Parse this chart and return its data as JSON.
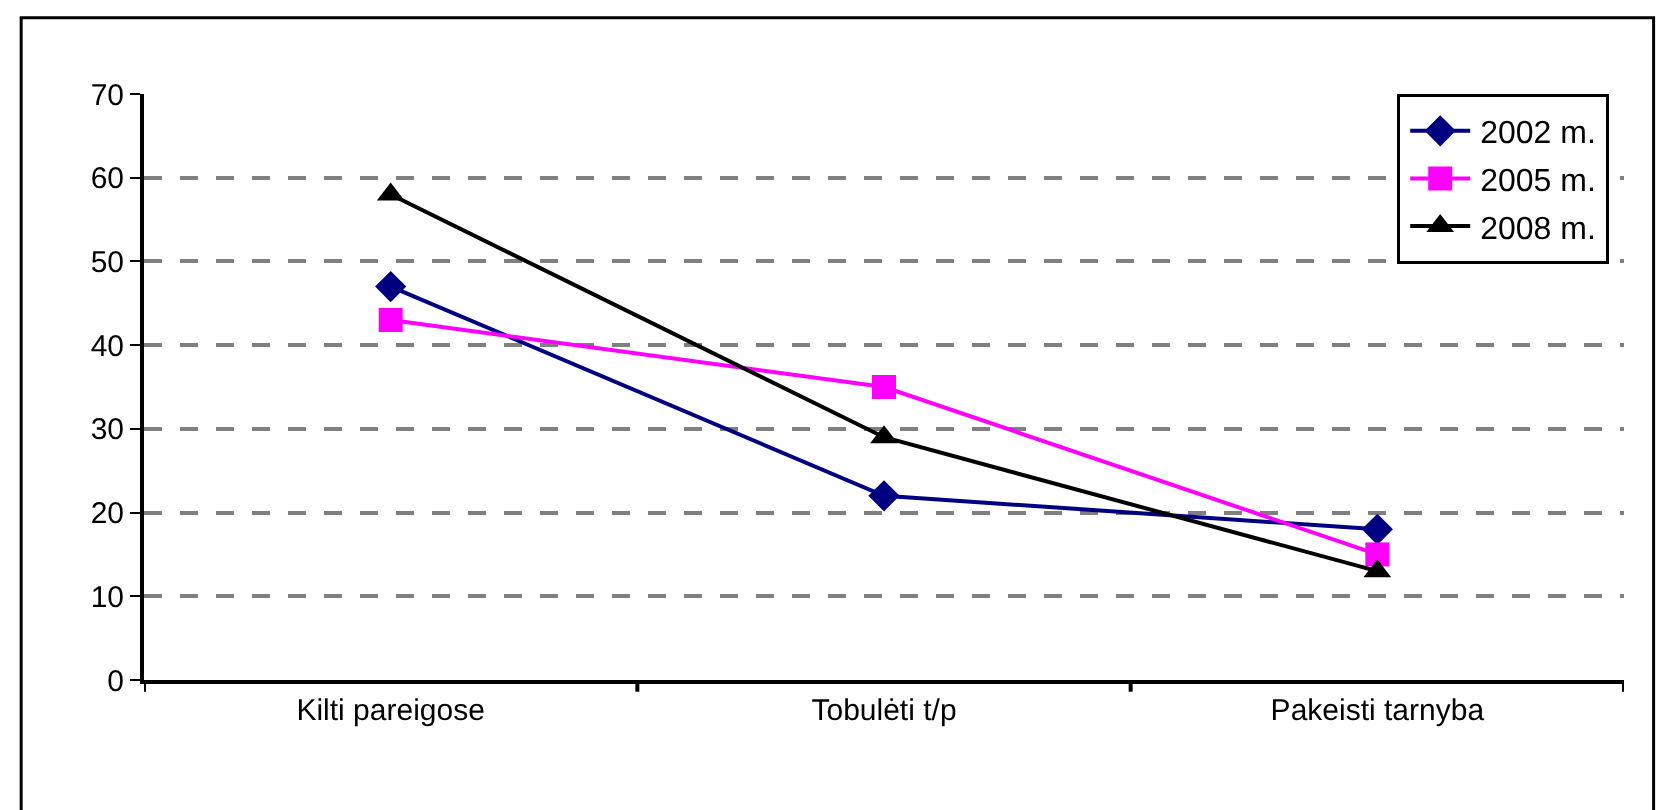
{
  "chart_data": {
    "type": "line",
    "categories": [
      "Kilti pareigose",
      "Tobulėti t/p",
      "Pakeisti tarnyba"
    ],
    "series": [
      {
        "name": "2002 m.",
        "color": "#000080",
        "marker": "diamond",
        "values": [
          47,
          22,
          18
        ]
      },
      {
        "name": "2005 m.",
        "color": "#ff00ff",
        "marker": "square",
        "values": [
          43,
          35,
          15
        ]
      },
      {
        "name": "2008 m.",
        "color": "#000000",
        "marker": "triangle",
        "values": [
          58,
          29,
          13
        ]
      }
    ],
    "ylim": [
      0,
      70
    ],
    "yticks": [
      0,
      10,
      20,
      30,
      40,
      50,
      60,
      70
    ],
    "grid": "y",
    "line_style": "solid",
    "legend": "top right"
  }
}
